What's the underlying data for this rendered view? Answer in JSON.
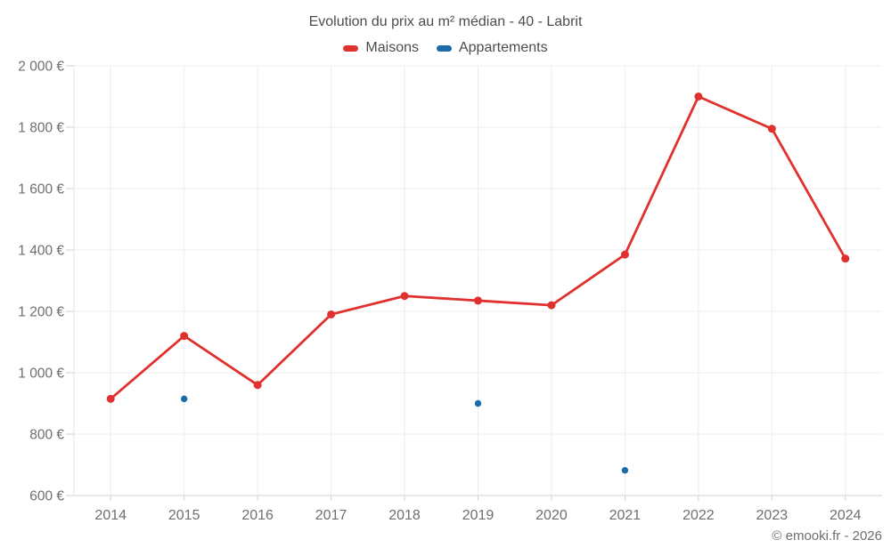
{
  "header": {
    "title": "Evolution du prix au m² médian - 40 - Labrit"
  },
  "legend": {
    "items": [
      {
        "label": "Maisons",
        "color": "#e0312f"
      },
      {
        "label": "Appartements",
        "color": "#1a6ca8"
      }
    ]
  },
  "footer": {
    "copyright": "© emooki.fr - 2026"
  },
  "chart_data": {
    "type": "line",
    "title": "Evolution du prix au m² médian - 40 - Labrit",
    "categories": [
      "2014",
      "2015",
      "2016",
      "2017",
      "2018",
      "2019",
      "2020",
      "2021",
      "2022",
      "2023",
      "2024"
    ],
    "series": [
      {
        "name": "Maisons",
        "color": "#e0312f",
        "style": "line+points",
        "values": [
          915,
          1120,
          960,
          1190,
          1250,
          1235,
          1220,
          1385,
          1900,
          1795,
          1372
        ]
      },
      {
        "name": "Appartements",
        "color": "#1a6ca8",
        "style": "points",
        "values": [
          null,
          915,
          null,
          null,
          null,
          900,
          null,
          682,
          null,
          null,
          null
        ]
      }
    ],
    "xlabel": "",
    "ylabel": "",
    "ylim": [
      600,
      2000
    ],
    "y_ticks": [
      {
        "value": 600,
        "label": "600 €"
      },
      {
        "value": 800,
        "label": "800 €"
      },
      {
        "value": 1000,
        "label": "1 000 €"
      },
      {
        "value": 1200,
        "label": "1 200 €"
      },
      {
        "value": 1400,
        "label": "1 400 €"
      },
      {
        "value": 1600,
        "label": "1 600 €"
      },
      {
        "value": 1800,
        "label": "1 800 €"
      },
      {
        "value": 2000,
        "label": "2 000 €"
      }
    ],
    "grid": true,
    "legend_position": "top",
    "currency_suffix": " €"
  }
}
